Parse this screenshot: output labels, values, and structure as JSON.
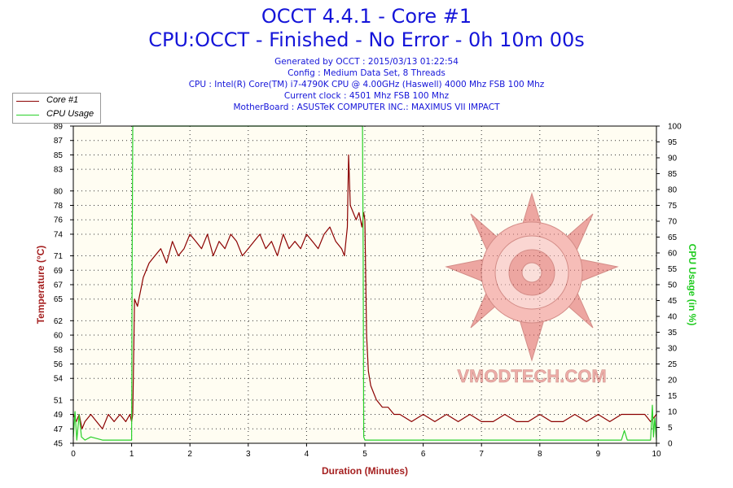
{
  "header": {
    "title": "OCCT 4.4.1 - Core #1",
    "subtitle": "CPU:OCCT - Finished - No Error - 0h 10m 00s",
    "info_lines": [
      "Generated by OCCT : 2015/03/13 01:22:54",
      "Config : Medium Data Set, 8 Threads",
      "CPU : Intel(R) Core(TM) i7-4790K CPU @ 4.00GHz (Haswell) 4000 Mhz FSB 100 Mhz",
      "Current clock : 4501 Mhz FSB 100 Mhz",
      "MotherBoard : ASUSTeK COMPUTER INC.: MAXIMUS VII IMPACT"
    ]
  },
  "watermark": {
    "text": "VMODTECH.COM"
  },
  "colors": {
    "temperature": "#8b0000",
    "cpu_usage": "#2ad12a",
    "title": "#1515d9",
    "ylabel_left": "#a52020",
    "ylabel_right": "#22cc22",
    "plot_bg": "#fffdf2"
  },
  "chart_data": {
    "type": "line",
    "title": "OCCT 4.4.1 - Core #1",
    "xlabel": "Duration (Minutes)",
    "ylabel_left": "Temperature (°C)",
    "ylabel_right": "CPU Usage (in %)",
    "xlim": [
      0,
      10
    ],
    "ylim_left": [
      45,
      89
    ],
    "ylim_right": [
      0,
      100
    ],
    "x_ticks": [
      0,
      1,
      2,
      3,
      4,
      5,
      6,
      7,
      8,
      9,
      10
    ],
    "y_left_ticks": [
      45,
      47,
      49,
      51,
      54,
      56,
      58,
      60,
      62,
      65,
      67,
      69,
      71,
      74,
      76,
      78,
      80,
      83,
      85,
      87,
      89
    ],
    "y_right_ticks": [
      0,
      5,
      10,
      15,
      20,
      25,
      30,
      35,
      40,
      45,
      50,
      55,
      60,
      65,
      70,
      75,
      80,
      85,
      90,
      95,
      100
    ],
    "grid": true,
    "legend_position": "top-left",
    "series": [
      {
        "name": "Core #1",
        "axis": "left",
        "x": [
          0,
          0.05,
          0.1,
          0.15,
          0.2,
          0.3,
          0.4,
          0.5,
          0.6,
          0.7,
          0.8,
          0.9,
          0.97,
          1.0,
          1.02,
          1.05,
          1.1,
          1.15,
          1.2,
          1.3,
          1.4,
          1.5,
          1.6,
          1.7,
          1.8,
          1.9,
          2.0,
          2.1,
          2.2,
          2.3,
          2.4,
          2.5,
          2.6,
          2.7,
          2.8,
          2.9,
          3.0,
          3.1,
          3.2,
          3.3,
          3.4,
          3.5,
          3.6,
          3.7,
          3.8,
          3.9,
          4.0,
          4.1,
          4.2,
          4.3,
          4.4,
          4.5,
          4.6,
          4.65,
          4.7,
          4.72,
          4.75,
          4.8,
          4.85,
          4.9,
          4.95,
          4.98,
          5.0,
          5.03,
          5.06,
          5.1,
          5.15,
          5.2,
          5.3,
          5.4,
          5.5,
          5.6,
          5.8,
          6.0,
          6.2,
          6.4,
          6.6,
          6.8,
          7.0,
          7.2,
          7.4,
          7.6,
          7.8,
          8.0,
          8.2,
          8.4,
          8.6,
          8.8,
          9.0,
          9.2,
          9.4,
          9.6,
          9.8,
          9.9,
          10.0
        ],
        "values": [
          49,
          48,
          49,
          47,
          48,
          49,
          48,
          47,
          49,
          48,
          49,
          48,
          49,
          48,
          49,
          65,
          64,
          66,
          68,
          70,
          71,
          72,
          70,
          73,
          71,
          72,
          74,
          73,
          72,
          74,
          71,
          73,
          72,
          74,
          73,
          71,
          72,
          73,
          74,
          72,
          73,
          71,
          74,
          72,
          73,
          72,
          74,
          73,
          72,
          74,
          75,
          73,
          72,
          71,
          75,
          85,
          78,
          77,
          76,
          77,
          75,
          77,
          76,
          60,
          55,
          53,
          52,
          51,
          50,
          50,
          49,
          49,
          48,
          49,
          48,
          49,
          48,
          49,
          48,
          48,
          49,
          48,
          48,
          49,
          48,
          48,
          49,
          48,
          49,
          48,
          49,
          49,
          49,
          48,
          49
        ]
      },
      {
        "name": "CPU Usage",
        "axis": "right",
        "x": [
          0,
          0.03,
          0.06,
          0.1,
          0.14,
          0.2,
          0.3,
          0.5,
          0.7,
          0.9,
          1.0,
          1.01,
          1.02,
          4.96,
          4.97,
          4.98,
          5.0,
          5.5,
          6.0,
          7.0,
          8.0,
          9.0,
          9.4,
          9.45,
          9.5,
          9.9,
          9.93,
          9.95,
          9.97,
          10.0
        ],
        "values": [
          2,
          10,
          1,
          9,
          2,
          1,
          2,
          1,
          1,
          1,
          1,
          60,
          100,
          100,
          60,
          2,
          1,
          1,
          1,
          1,
          1,
          1,
          1,
          4,
          1,
          1,
          12,
          2,
          8,
          1
        ]
      }
    ]
  }
}
